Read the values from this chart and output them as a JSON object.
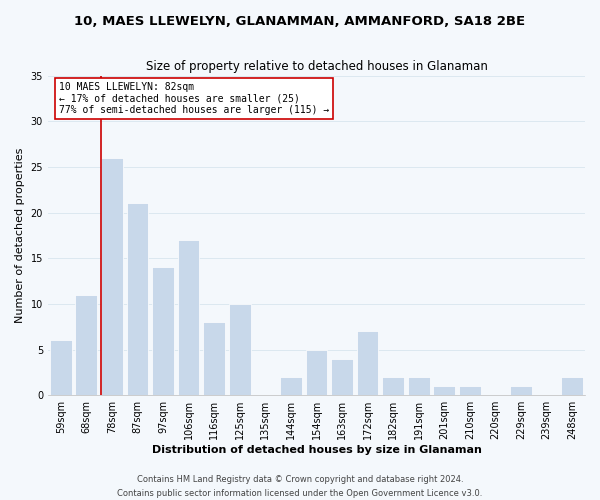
{
  "title": "10, MAES LLEWELYN, GLANAMMAN, AMMANFORD, SA18 2BE",
  "subtitle": "Size of property relative to detached houses in Glanaman",
  "xlabel": "Distribution of detached houses by size in Glanaman",
  "ylabel": "Number of detached properties",
  "bar_color": "#c8d8ea",
  "bar_edge_color": "#ffffff",
  "categories": [
    "59sqm",
    "68sqm",
    "78sqm",
    "87sqm",
    "97sqm",
    "106sqm",
    "116sqm",
    "125sqm",
    "135sqm",
    "144sqm",
    "154sqm",
    "163sqm",
    "172sqm",
    "182sqm",
    "191sqm",
    "201sqm",
    "210sqm",
    "220sqm",
    "229sqm",
    "239sqm",
    "248sqm"
  ],
  "values": [
    6,
    11,
    26,
    21,
    14,
    17,
    8,
    10,
    0,
    2,
    5,
    4,
    7,
    2,
    2,
    1,
    1,
    0,
    1,
    0,
    2
  ],
  "ylim": [
    0,
    35
  ],
  "yticks": [
    0,
    5,
    10,
    15,
    20,
    25,
    30,
    35
  ],
  "vline_bar_index": 2,
  "vline_color": "#cc0000",
  "annotation_title": "10 MAES LLEWELYN: 82sqm",
  "annotation_line1": "← 17% of detached houses are smaller (25)",
  "annotation_line2": "77% of semi-detached houses are larger (115) →",
  "annotation_box_color": "#ffffff",
  "annotation_box_edge": "#cc0000",
  "footer_line1": "Contains HM Land Registry data © Crown copyright and database right 2024.",
  "footer_line2": "Contains public sector information licensed under the Open Government Licence v3.0.",
  "grid_color": "#dce8f0",
  "background_color": "#f4f8fc",
  "title_fontsize": 9.5,
  "subtitle_fontsize": 8.5,
  "axis_label_fontsize": 8,
  "tick_fontsize": 7,
  "annotation_fontsize": 7,
  "footer_fontsize": 6
}
